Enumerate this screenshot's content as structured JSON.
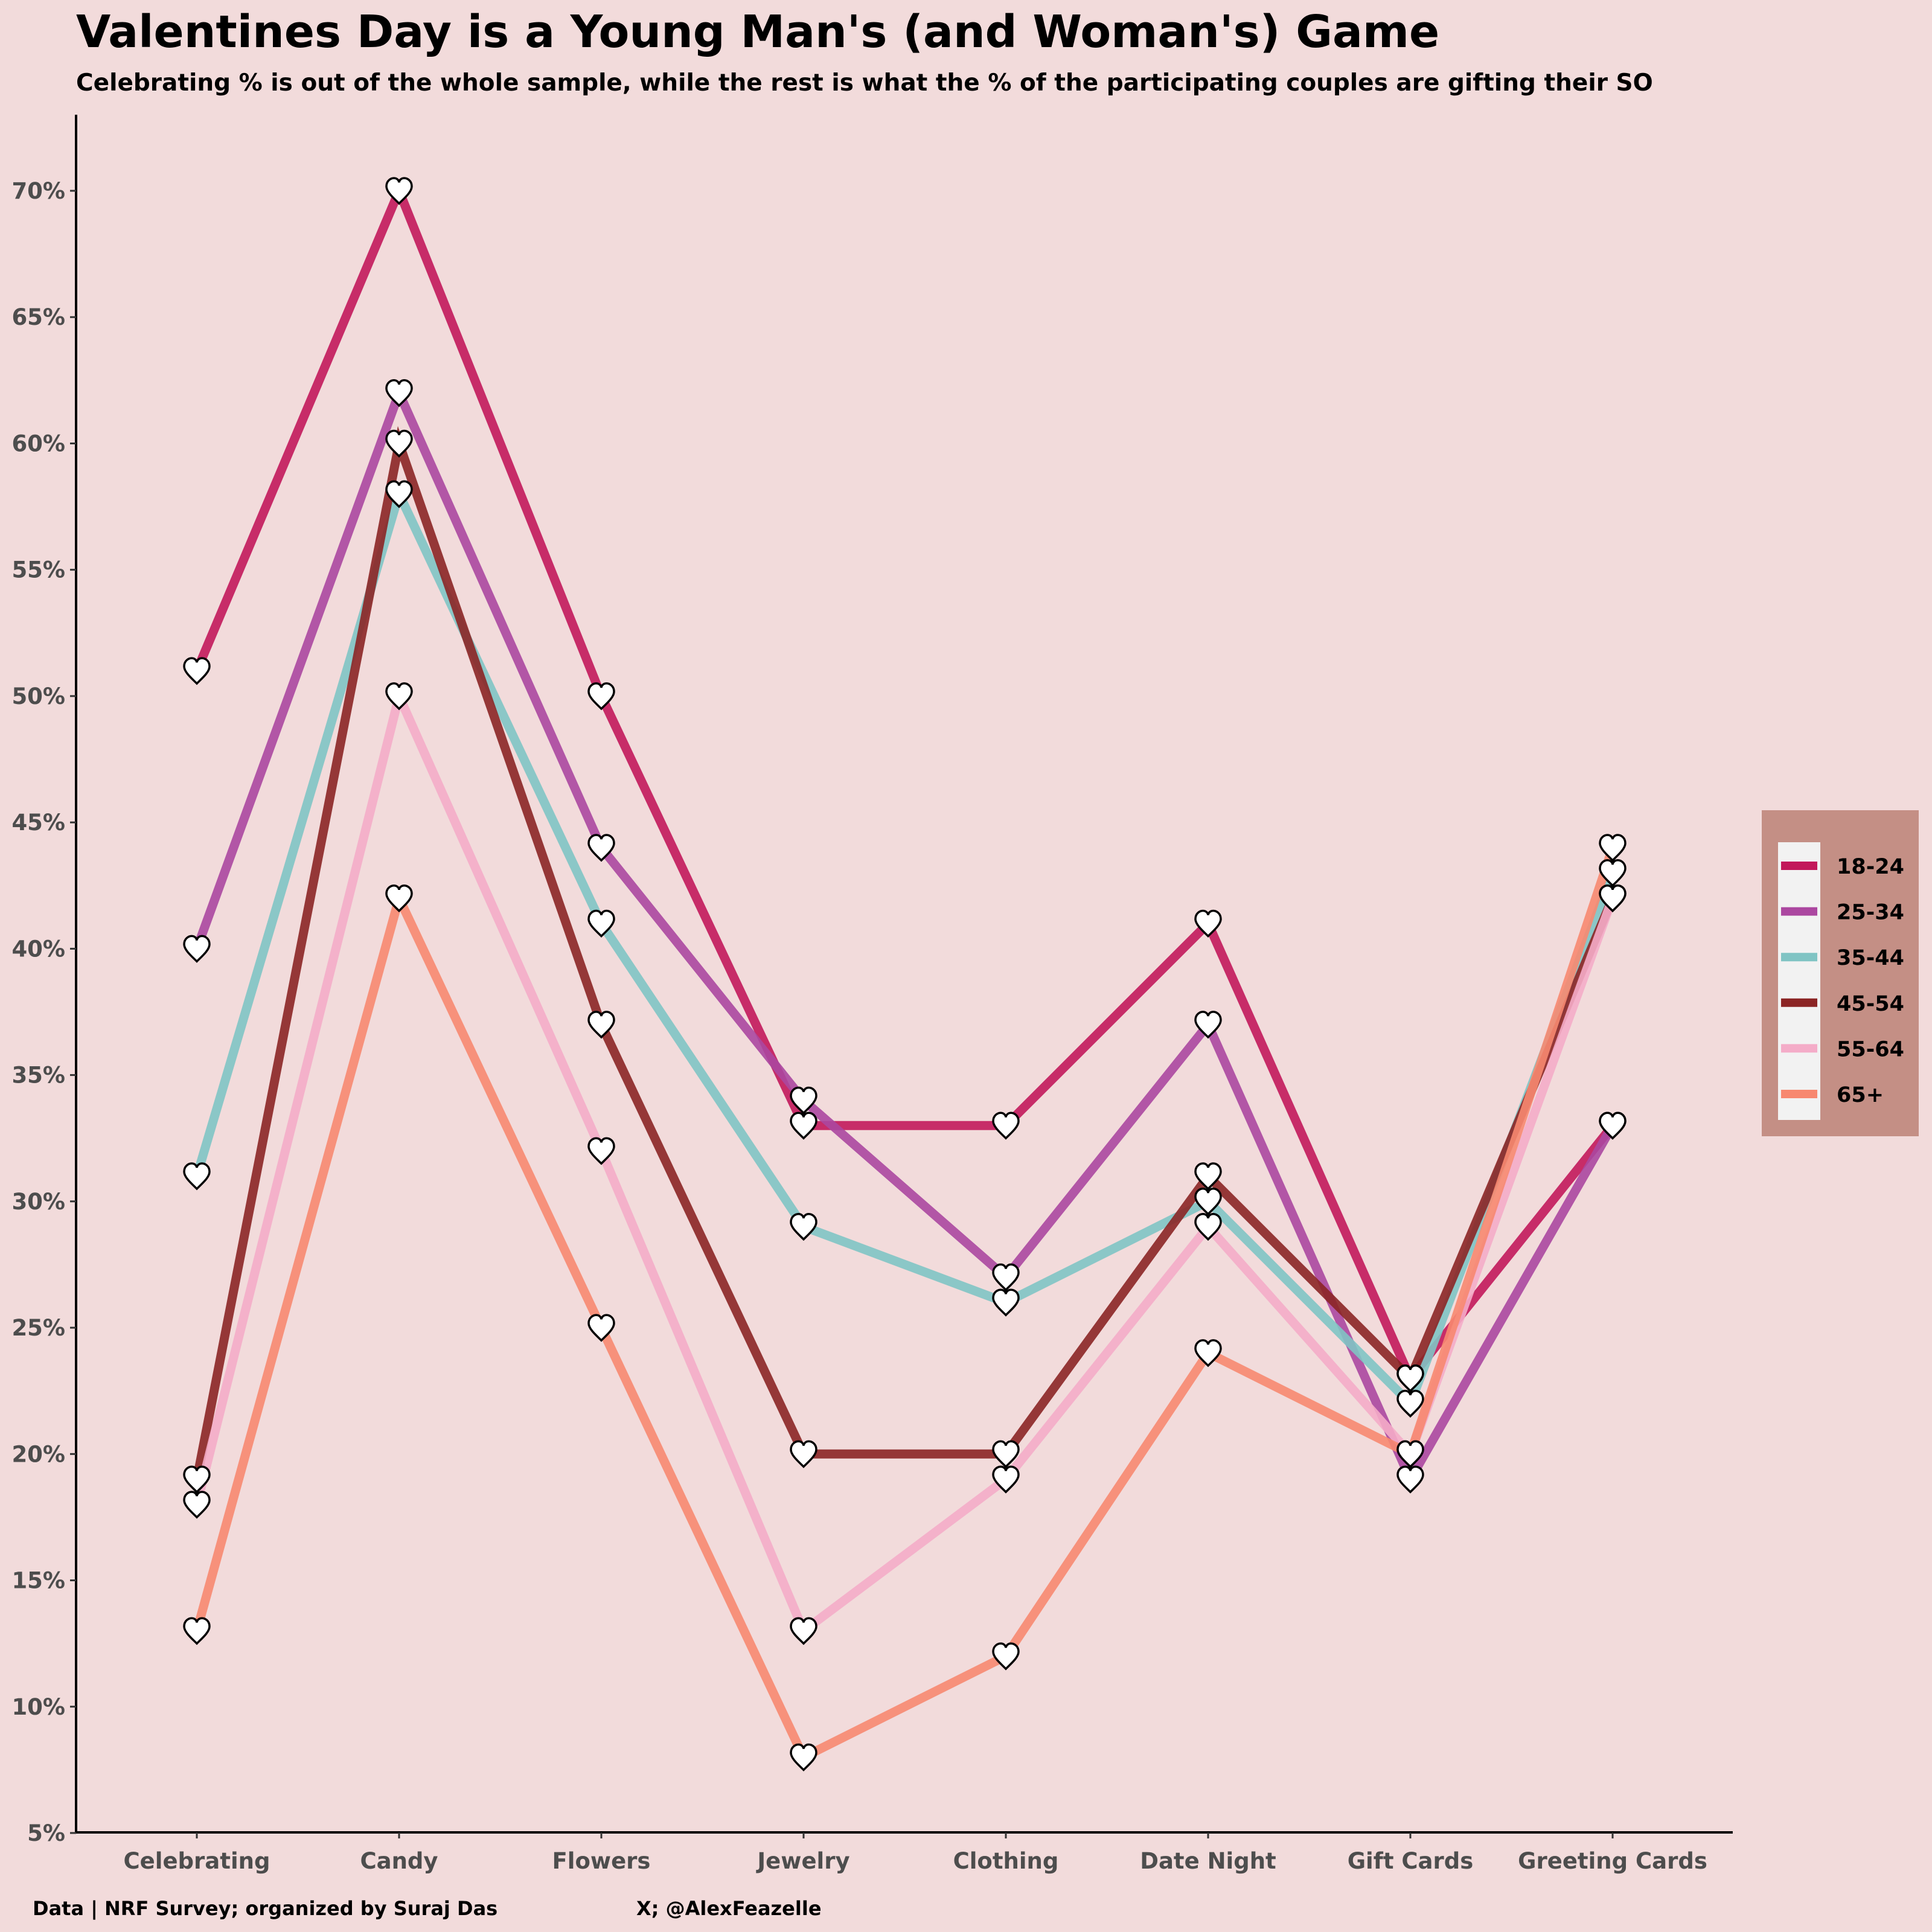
{
  "chart_data": {
    "type": "line",
    "title": "Valentines Day is a Young Man's (and Woman's) Game",
    "subtitle": "Celebrating % is out of the whole sample, while the rest is what the % of the participating couples are gifting their SO",
    "categories": [
      "Celebrating",
      "Candy",
      "Flowers",
      "Jewelry",
      "Clothing",
      "Date Night",
      "Gift Cards",
      "Greeting Cards"
    ],
    "ylim": [
      5,
      73
    ],
    "y_ticks": [
      5,
      10,
      15,
      20,
      25,
      30,
      35,
      40,
      45,
      50,
      55,
      60,
      65,
      70
    ],
    "y_tick_suffix": "%",
    "grid": false,
    "legend_position": "right",
    "marker": "heart",
    "series": [
      {
        "name": "18-24",
        "color": "#c2185b",
        "values": [
          51,
          70,
          50,
          33,
          33,
          41,
          23,
          33
        ]
      },
      {
        "name": "25-34",
        "color": "#ab47a0",
        "values": [
          40,
          62,
          44,
          34,
          27,
          37,
          19,
          33
        ]
      },
      {
        "name": "35-44",
        "color": "#80c4c4",
        "values": [
          31,
          58,
          41,
          29,
          26,
          30,
          22,
          43
        ]
      },
      {
        "name": "45-54",
        "color": "#8b2525",
        "values": [
          19,
          60,
          37,
          20,
          20,
          31,
          23,
          42
        ]
      },
      {
        "name": "55-64",
        "color": "#f4acc8",
        "values": [
          18,
          50,
          32,
          13,
          19,
          29,
          20,
          42
        ]
      },
      {
        "name": "65+",
        "color": "#f78870",
        "values": [
          13,
          42,
          25,
          8,
          12,
          24,
          20,
          44
        ]
      }
    ]
  },
  "footer": {
    "source": "Data | NRF Survey; organized by Suraj Das",
    "credit": "X; @AlexFeazelle"
  },
  "legend_colors": {
    "panel": "#c48f85",
    "key_bg": "#f2f2f2"
  }
}
